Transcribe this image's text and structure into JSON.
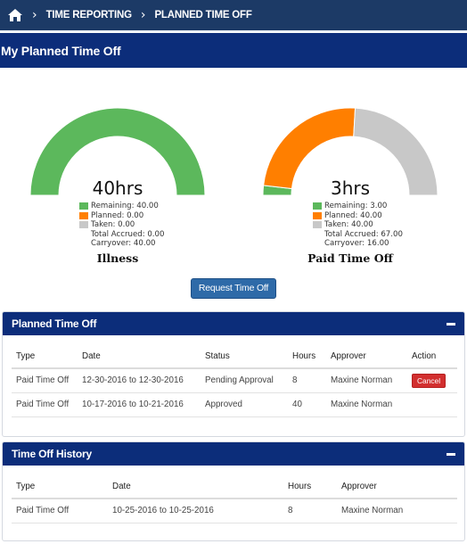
{
  "breadcrumb": {
    "items": [
      "TIME REPORTING",
      "PLANNED TIME OFF"
    ]
  },
  "page_title": "My Planned Time Off",
  "colors": {
    "remaining": "#5cb85c",
    "planned": "#ff7f00",
    "taken": "#c8c8c8",
    "header": "#0c2d7a",
    "topbar": "#1c3a66"
  },
  "gauges": [
    {
      "name": "Illness",
      "value_text": "40hrs",
      "remaining": 40,
      "planned": 0,
      "taken": 0,
      "legend": {
        "remaining": "Remaining: 40.00",
        "planned": "Planned: 0.00",
        "taken": "Taken: 0.00",
        "accrued": "Total Accrued: 0.00",
        "carryover": "Carryover: 40.00"
      }
    },
    {
      "name": "Paid Time Off",
      "value_text": "3hrs",
      "remaining": 3,
      "planned": 40,
      "taken": 40,
      "legend": {
        "remaining": "Remaining: 3.00",
        "planned": "Planned: 40.00",
        "taken": "Taken: 40.00",
        "accrued": "Total Accrued: 67.00",
        "carryover": "Carryover: 16.00"
      }
    }
  ],
  "request_button": "Request Time Off",
  "planned_panel": {
    "title": "Planned Time Off",
    "columns": [
      "Type",
      "Date",
      "Status",
      "Hours",
      "Approver",
      "Action"
    ],
    "rows": [
      {
        "type": "Paid Time Off",
        "date": "12-30-2016 to 12-30-2016",
        "status": "Pending Approval",
        "hours": "8",
        "approver": "Maxine Norman",
        "action": "Cancel"
      },
      {
        "type": "Paid Time Off",
        "date": "10-17-2016 to 10-21-2016",
        "status": "Approved",
        "hours": "40",
        "approver": "Maxine Norman",
        "action": ""
      }
    ]
  },
  "history_panel": {
    "title": "Time Off History",
    "columns": [
      "Type",
      "Date",
      "Hours",
      "Approver"
    ],
    "rows": [
      {
        "type": "Paid Time Off",
        "date": "10-25-2016 to 10-25-2016",
        "hours": "8",
        "approver": "Maxine Norman"
      }
    ]
  }
}
